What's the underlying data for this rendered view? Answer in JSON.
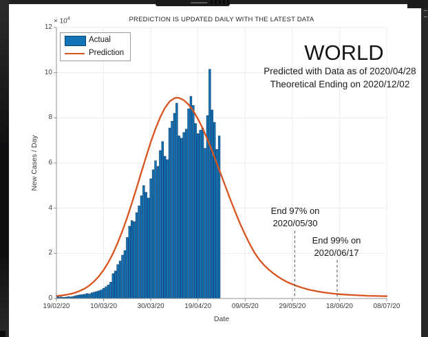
{
  "chart_data": {
    "type": "bar",
    "title": "PREDICTION IS UPDATED DAILY WITH THE LATEST DATA",
    "xlabel": "Date",
    "ylabel": "New Cases / Day",
    "y_offset_text": "× 10",
    "y_offset_exponent": "4",
    "ylim": [
      0,
      12
    ],
    "xlim_days": [
      0,
      140
    ],
    "grid": "on",
    "x_tick_days": [
      0,
      20,
      40,
      60,
      80,
      100,
      120,
      140
    ],
    "x_tick_labels": [
      "19/02/20",
      "10/03/20",
      "30/03/20",
      "19/04/20",
      "09/05/20",
      "29/05/20",
      "18/06/20",
      "08/07/20"
    ],
    "y_ticks": [
      0,
      2,
      4,
      6,
      8,
      10,
      12
    ],
    "y_tick_labels": [
      "0",
      "2",
      "4",
      "6",
      "8",
      "10",
      "12"
    ],
    "legend": {
      "position": "northwest",
      "items": [
        {
          "label": "Actual",
          "type": "bar",
          "color": "#1273b6"
        },
        {
          "label": "Prediction",
          "type": "line",
          "color": "#d9531e"
        }
      ]
    },
    "series": [
      {
        "name": "Actual",
        "type": "bar",
        "color": "#1273b6",
        "edge_color": "#0e3f6d",
        "start_date": "19/02/20",
        "unit": "x10^4 cases/day",
        "values": [
          0.08,
          0.06,
          0.07,
          0.05,
          0.06,
          0.08,
          0.07,
          0.09,
          0.12,
          0.14,
          0.16,
          0.17,
          0.19,
          0.22,
          0.2,
          0.25,
          0.28,
          0.31,
          0.34,
          0.38,
          0.45,
          0.52,
          0.6,
          0.72,
          1.1,
          1.22,
          1.5,
          1.66,
          1.92,
          2.12,
          2.7,
          3.2,
          3.45,
          3.4,
          3.8,
          4.1,
          4.55,
          5.0,
          4.7,
          4.45,
          5.3,
          5.7,
          6.1,
          5.85,
          6.55,
          6.95,
          6.3,
          6.15,
          7.55,
          7.85,
          8.2,
          8.65,
          7.2,
          7.1,
          7.35,
          7.5,
          8.4,
          8.95,
          8.55,
          7.75,
          7.3,
          7.45,
          7.55,
          6.65,
          8.1,
          10.15,
          8.35,
          7.8,
          6.6,
          7.2
        ]
      },
      {
        "name": "Prediction",
        "type": "line",
        "color": "#d9531e",
        "points": [
          [
            0,
            0.11
          ],
          [
            2,
            0.13
          ],
          [
            4,
            0.16
          ],
          [
            6,
            0.2
          ],
          [
            8,
            0.26
          ],
          [
            10,
            0.34
          ],
          [
            12,
            0.44
          ],
          [
            14,
            0.58
          ],
          [
            16,
            0.76
          ],
          [
            18,
            0.98
          ],
          [
            20,
            1.26
          ],
          [
            22,
            1.6
          ],
          [
            24,
            2.0
          ],
          [
            26,
            2.47
          ],
          [
            28,
            3.0
          ],
          [
            30,
            3.59
          ],
          [
            32,
            4.23
          ],
          [
            34,
            4.9
          ],
          [
            36,
            5.59
          ],
          [
            38,
            6.27
          ],
          [
            40,
            6.93
          ],
          [
            42,
            7.52
          ],
          [
            44,
            8.03
          ],
          [
            46,
            8.44
          ],
          [
            48,
            8.73
          ],
          [
            50,
            8.87
          ],
          [
            51,
            8.89
          ],
          [
            52,
            8.88
          ],
          [
            54,
            8.78
          ],
          [
            56,
            8.59
          ],
          [
            58,
            8.31
          ],
          [
            60,
            7.95
          ],
          [
            62,
            7.53
          ],
          [
            64,
            7.05
          ],
          [
            66,
            6.53
          ],
          [
            68,
            5.98
          ],
          [
            70,
            5.42
          ],
          [
            72,
            4.86
          ],
          [
            74,
            4.31
          ],
          [
            76,
            3.78
          ],
          [
            78,
            3.28
          ],
          [
            80,
            2.82
          ],
          [
            82,
            2.4
          ],
          [
            84,
            2.02
          ],
          [
            86,
            1.72
          ],
          [
            88,
            1.48
          ],
          [
            90,
            1.28
          ],
          [
            92,
            1.11
          ],
          [
            94,
            0.96
          ],
          [
            96,
            0.83
          ],
          [
            98,
            0.72
          ],
          [
            100,
            0.63
          ],
          [
            102,
            0.55
          ],
          [
            104,
            0.48
          ],
          [
            106,
            0.42
          ],
          [
            108,
            0.37
          ],
          [
            110,
            0.33
          ],
          [
            112,
            0.29
          ],
          [
            114,
            0.26
          ],
          [
            116,
            0.23
          ],
          [
            118,
            0.21
          ],
          [
            120,
            0.19
          ],
          [
            124,
            0.16
          ],
          [
            128,
            0.14
          ],
          [
            132,
            0.12
          ],
          [
            136,
            0.11
          ],
          [
            140,
            0.1
          ]
        ]
      }
    ],
    "annotations": {
      "country": "WORLD",
      "subtitle1": "Predicted with Data as of 2020/04/28",
      "subtitle2": "Theoretical Ending on 2020/12/02",
      "end97": {
        "line1": "End 97% on",
        "line2": "2020/05/30",
        "day": 101,
        "line_top_value": 3.0
      },
      "end99": {
        "line1": "End 99% on",
        "line2": "2020/06/17",
        "day": 119,
        "line_top_value": 1.7
      }
    },
    "colors": {
      "grid": "#ececec",
      "axis": "#909090",
      "dashed_line": "#4f4f4f"
    }
  }
}
